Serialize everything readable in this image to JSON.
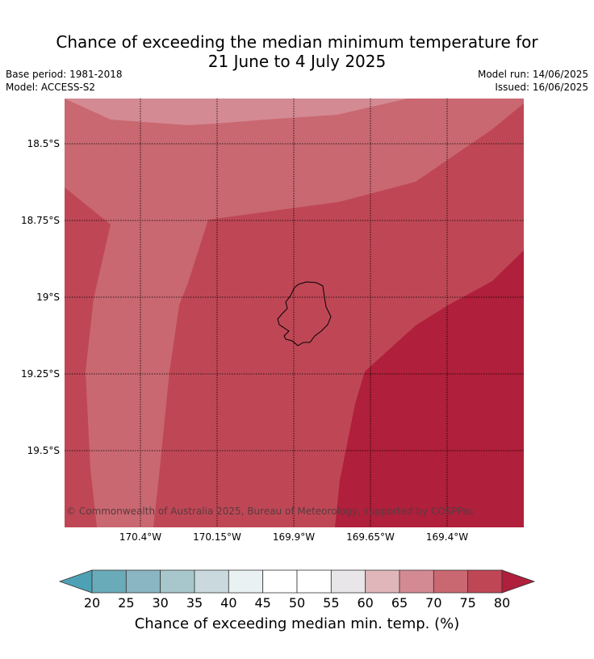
{
  "title": {
    "line1": "Chance of exceeding the median minimum temperature for",
    "line2": "21 June to 4 July 2025"
  },
  "meta": {
    "base_period": "Base period: 1981-2018",
    "model": "Model: ACCESS-S2",
    "model_run": "Model run: 14/06/2025",
    "issued": "Issued: 16/06/2025"
  },
  "map": {
    "lat_labels": [
      "18.5°S",
      "18.75°S",
      "19°S",
      "19.25°S",
      "19.5°S"
    ],
    "lon_labels": [
      "170.4°W",
      "170.15°W",
      "169.9°W",
      "169.65°W",
      "169.4°W"
    ],
    "copyright": "© Commonwealth of Australia 2025, Bureau of Meteorology, supported by COSPPac",
    "gridlines": true
  },
  "colorbar": {
    "ticks": [
      "20",
      "25",
      "30",
      "35",
      "40",
      "45",
      "50",
      "55",
      "60",
      "65",
      "70",
      "75",
      "80"
    ],
    "colors": [
      "#6aabba",
      "#8ab5c2",
      "#a7c7cc",
      "#c9d9dd",
      "#eaf1f3",
      "#ffffff",
      "#ffffff",
      "#e8e6e8",
      "#e0b6ba",
      "#d48a93",
      "#c96871",
      "#bf4755"
    ],
    "low_extend_color": "#4ea1b5",
    "high_extend_color": "#b01f3b",
    "label": "Chance of exceeding median min. temp. (%)"
  }
}
